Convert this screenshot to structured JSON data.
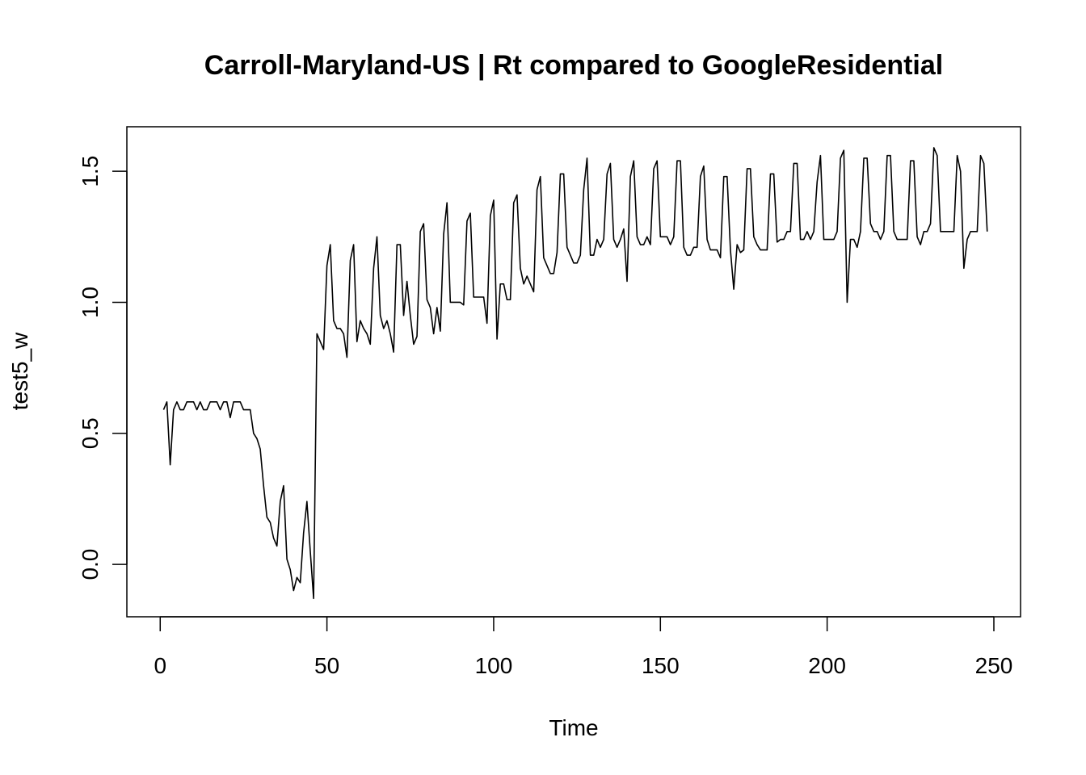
{
  "chart_data": {
    "type": "line",
    "title": "Carroll-Maryland-US | Rt compared to GoogleResidential",
    "xlabel": "Time",
    "ylabel": "test5_w",
    "xlim": [
      -10,
      258
    ],
    "ylim": [
      -0.2,
      1.67
    ],
    "xticks": [
      0,
      50,
      100,
      150,
      200,
      250
    ],
    "yticks": [
      0.0,
      0.5,
      1.0,
      1.5
    ],
    "xtick_labels": [
      "0",
      "50",
      "100",
      "150",
      "200",
      "250"
    ],
    "ytick_labels": [
      "0.0",
      "0.5",
      "1.0",
      "1.5"
    ],
    "grid": false,
    "series": [
      {
        "color": "#000000",
        "x": [
          1,
          2,
          3,
          4,
          5,
          6,
          7,
          8,
          9,
          10,
          11,
          12,
          13,
          14,
          15,
          16,
          17,
          18,
          19,
          20,
          21,
          22,
          23,
          24,
          25,
          26,
          27,
          28,
          29,
          30,
          31,
          32,
          33,
          34,
          35,
          36,
          37,
          38,
          39,
          40,
          41,
          42,
          43,
          44,
          45,
          46,
          47,
          48,
          49,
          50,
          51,
          52,
          53,
          54,
          55,
          56,
          57,
          58,
          59,
          60,
          61,
          62,
          63,
          64,
          65,
          66,
          67,
          68,
          69,
          70,
          71,
          72,
          73,
          74,
          75,
          76,
          77,
          78,
          79,
          80,
          81,
          82,
          83,
          84,
          85,
          86,
          87,
          88,
          89,
          90,
          91,
          92,
          93,
          94,
          95,
          96,
          97,
          98,
          99,
          100,
          101,
          102,
          103,
          104,
          105,
          106,
          107,
          108,
          109,
          110,
          111,
          112,
          113,
          114,
          115,
          116,
          117,
          118,
          119,
          120,
          121,
          122,
          123,
          124,
          125,
          126,
          127,
          128,
          129,
          130,
          131,
          132,
          133,
          134,
          135,
          136,
          137,
          138,
          139,
          140,
          141,
          142,
          143,
          144,
          145,
          146,
          147,
          148,
          149,
          150,
          151,
          152,
          153,
          154,
          155,
          156,
          157,
          158,
          159,
          160,
          161,
          162,
          163,
          164,
          165,
          166,
          167,
          168,
          169,
          170,
          171,
          172,
          173,
          174,
          175,
          176,
          177,
          178,
          179,
          180,
          181,
          182,
          183,
          184,
          185,
          186,
          187,
          188,
          189,
          190,
          191,
          192,
          193,
          194,
          195,
          196,
          197,
          198,
          199,
          200,
          201,
          202,
          203,
          204,
          205,
          206,
          207,
          208,
          209,
          210,
          211,
          212,
          213,
          214,
          215,
          216,
          217,
          218,
          219,
          220,
          221,
          222,
          223,
          224,
          225,
          226,
          227,
          228,
          229,
          230,
          231,
          232,
          233,
          234,
          235,
          236,
          237,
          238,
          239,
          240,
          241,
          242,
          243,
          244,
          245,
          246,
          247,
          248
        ],
        "y": [
          0.59,
          0.62,
          0.38,
          0.59,
          0.62,
          0.59,
          0.59,
          0.62,
          0.62,
          0.62,
          0.59,
          0.62,
          0.59,
          0.59,
          0.62,
          0.62,
          0.62,
          0.59,
          0.62,
          0.62,
          0.56,
          0.62,
          0.62,
          0.62,
          0.59,
          0.59,
          0.59,
          0.5,
          0.48,
          0.44,
          0.3,
          0.18,
          0.16,
          0.1,
          0.07,
          0.24,
          0.3,
          0.02,
          -0.02,
          -0.1,
          -0.05,
          -0.07,
          0.12,
          0.24,
          0.05,
          -0.13,
          0.88,
          0.85,
          0.82,
          1.14,
          1.22,
          0.93,
          0.9,
          0.9,
          0.88,
          0.79,
          1.16,
          1.22,
          0.85,
          0.93,
          0.9,
          0.88,
          0.84,
          1.13,
          1.25,
          0.95,
          0.9,
          0.93,
          0.88,
          0.81,
          1.22,
          1.22,
          0.95,
          1.08,
          0.95,
          0.84,
          0.87,
          1.27,
          1.3,
          1.01,
          0.98,
          0.88,
          0.98,
          0.89,
          1.26,
          1.38,
          1.0,
          1.0,
          1.0,
          1.0,
          0.99,
          1.31,
          1.34,
          1.02,
          1.02,
          1.02,
          1.02,
          0.92,
          1.33,
          1.39,
          0.86,
          1.07,
          1.07,
          1.01,
          1.01,
          1.38,
          1.41,
          1.13,
          1.07,
          1.1,
          1.07,
          1.04,
          1.43,
          1.48,
          1.17,
          1.14,
          1.11,
          1.11,
          1.19,
          1.49,
          1.49,
          1.21,
          1.18,
          1.15,
          1.15,
          1.18,
          1.43,
          1.55,
          1.18,
          1.18,
          1.24,
          1.21,
          1.24,
          1.49,
          1.53,
          1.24,
          1.21,
          1.24,
          1.28,
          1.08,
          1.48,
          1.54,
          1.25,
          1.22,
          1.22,
          1.25,
          1.22,
          1.51,
          1.54,
          1.25,
          1.25,
          1.25,
          1.22,
          1.25,
          1.54,
          1.54,
          1.21,
          1.18,
          1.18,
          1.21,
          1.21,
          1.48,
          1.52,
          1.24,
          1.2,
          1.2,
          1.2,
          1.17,
          1.48,
          1.48,
          1.2,
          1.05,
          1.22,
          1.19,
          1.2,
          1.51,
          1.51,
          1.25,
          1.22,
          1.2,
          1.2,
          1.2,
          1.49,
          1.49,
          1.23,
          1.24,
          1.24,
          1.27,
          1.27,
          1.53,
          1.53,
          1.24,
          1.24,
          1.27,
          1.24,
          1.27,
          1.46,
          1.56,
          1.24,
          1.24,
          1.24,
          1.24,
          1.27,
          1.55,
          1.58,
          1.0,
          1.24,
          1.24,
          1.21,
          1.27,
          1.55,
          1.55,
          1.3,
          1.27,
          1.27,
          1.24,
          1.27,
          1.56,
          1.56,
          1.27,
          1.24,
          1.24,
          1.24,
          1.24,
          1.54,
          1.54,
          1.25,
          1.22,
          1.27,
          1.27,
          1.3,
          1.59,
          1.56,
          1.27,
          1.27,
          1.27,
          1.27,
          1.27,
          1.56,
          1.5,
          1.13,
          1.24,
          1.27,
          1.27,
          1.27,
          1.56,
          1.53,
          1.27
        ]
      }
    ]
  }
}
